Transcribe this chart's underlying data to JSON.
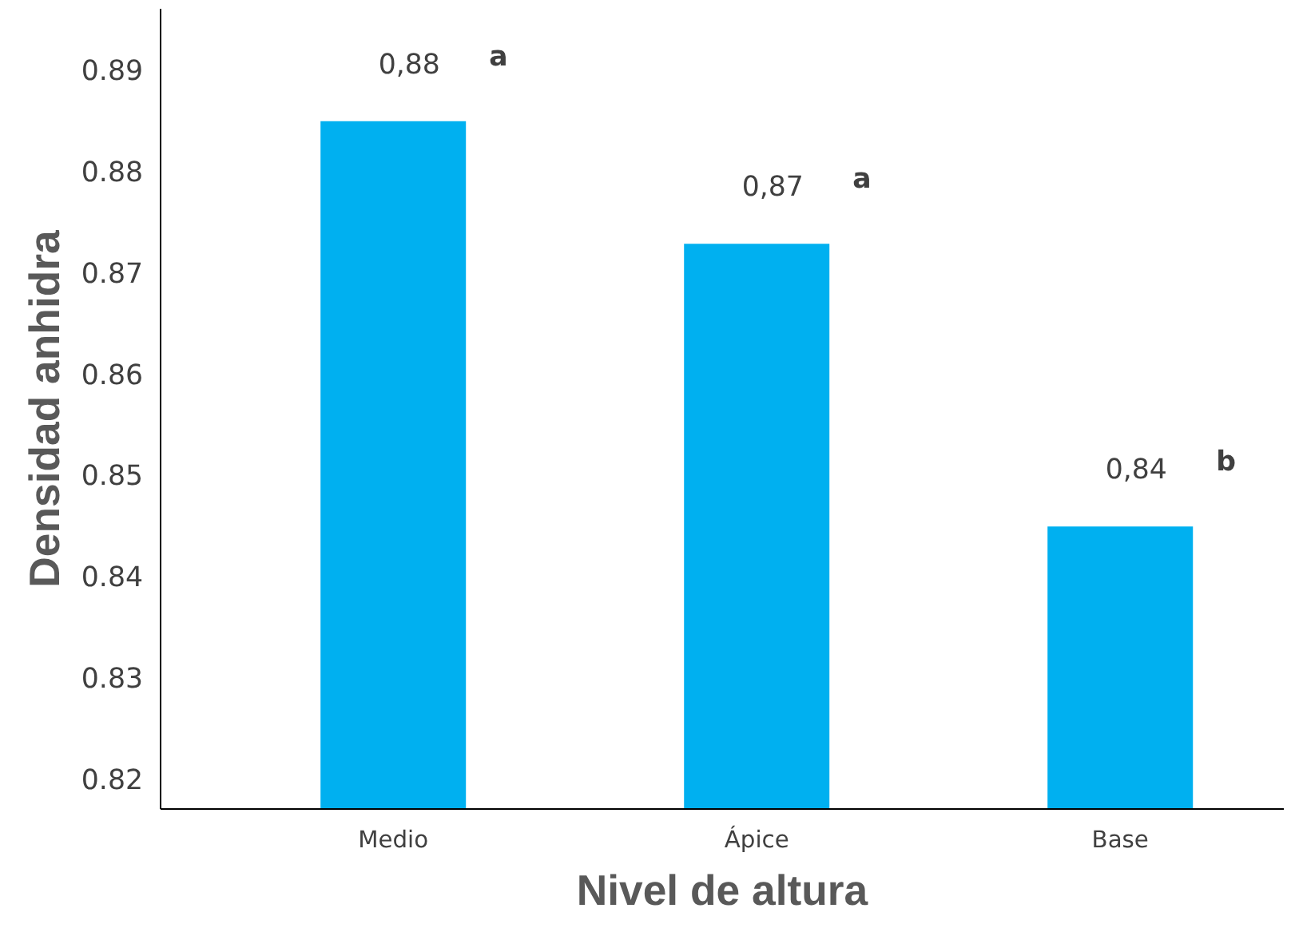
{
  "chart_data": {
    "type": "bar",
    "xlabel": "Nivel de altura",
    "ylabel": "Densidad anhidra",
    "categories": [
      "Medio",
      "Ápice",
      "Base"
    ],
    "values": [
      0.8849,
      0.8728,
      0.8449
    ],
    "color": "#00b0f0",
    "value_labels": [
      "0,88",
      "0,87",
      "0,84"
    ],
    "annotations": [
      "a",
      "a",
      "b"
    ],
    "ylim": [
      0.817,
      0.896
    ],
    "yticks": [
      0.82,
      0.83,
      0.84,
      0.85,
      0.86,
      0.87,
      0.88,
      0.89
    ],
    "grid": false
  }
}
